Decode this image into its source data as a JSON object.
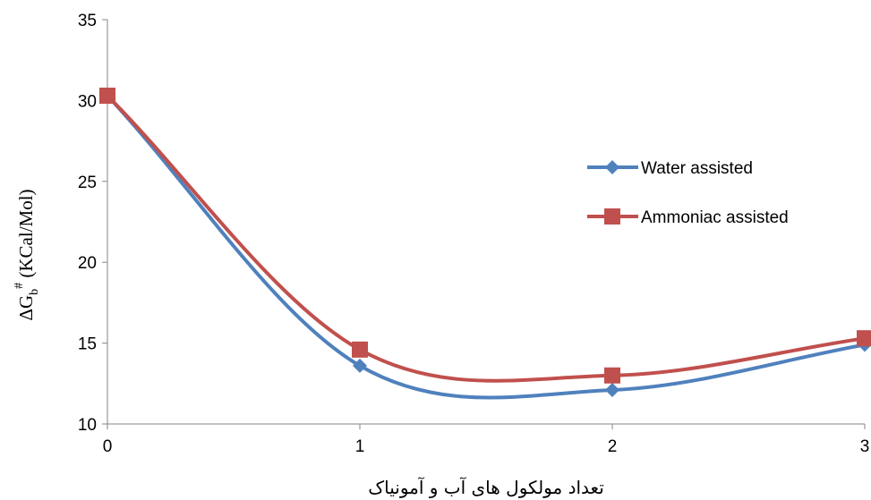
{
  "chart_data": {
    "type": "line",
    "smooth": true,
    "x": [
      0,
      1,
      2,
      3
    ],
    "series": [
      {
        "name": "Water assisted",
        "values": [
          30.3,
          13.6,
          12.1,
          14.9
        ],
        "color": "#4f81bd",
        "marker": "diamond"
      },
      {
        "name": "Ammoniac assisted",
        "values": [
          30.3,
          14.6,
          13.0,
          15.3
        ],
        "color": "#c0504d",
        "marker": "square"
      }
    ],
    "xlabel": "تعداد مولکول های آب و آمونیاک",
    "ylabel": {
      "main": "ΔG",
      "subscript": "b",
      "superscript": "#",
      "rest": " (KCal/Mol)"
    },
    "ylim": [
      10,
      35
    ],
    "xlim": [
      0,
      3
    ],
    "yticks": [
      10,
      15,
      20,
      25,
      30,
      35
    ],
    "xticks": [
      0,
      1,
      2,
      3
    ],
    "grid": false,
    "legend_position": "right"
  }
}
